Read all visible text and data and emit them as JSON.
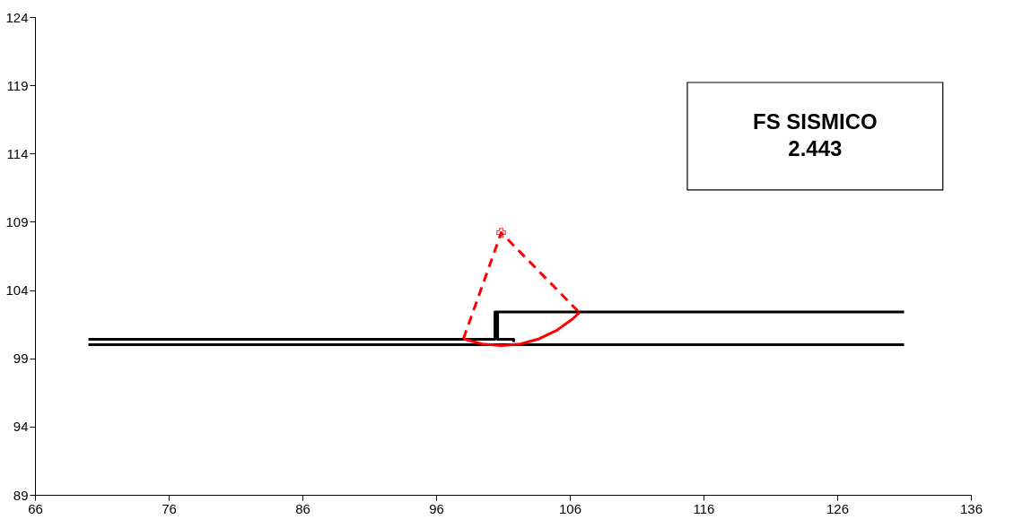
{
  "chart_data": {
    "type": "line",
    "xlim": [
      66,
      136
    ],
    "xticks": [
      66,
      76,
      86,
      96,
      106,
      116,
      126,
      136
    ],
    "ylim": [
      89,
      124
    ],
    "yticks": [
      89,
      94,
      99,
      104,
      109,
      114,
      119,
      124
    ],
    "grid": false,
    "annotations": [
      "FS  SISMICO\n2.443"
    ],
    "series": [
      {
        "type": "line",
        "color": "#000000",
        "line_style": "solid",
        "marker": "none",
        "x": [
          70,
          100.4,
          100.4,
          131
        ],
        "values": [
          100.4,
          100.4,
          102.4,
          102.4
        ]
      },
      {
        "type": "line",
        "color": "#000000",
        "line_style": "solid",
        "marker": "none",
        "x": [
          100.6,
          100.6,
          101.8,
          101.8
        ],
        "values": [
          102.4,
          100.4,
          100.4,
          100.2
        ]
      },
      {
        "type": "line",
        "color": "#000000",
        "line_style": "solid",
        "marker": "none",
        "x": [
          70,
          131
        ],
        "values": [
          100.0,
          100.0
        ]
      },
      {
        "type": "line",
        "color": "#ff0000",
        "line_style": "solid",
        "marker": "none",
        "x": [
          98.04,
          99.43,
          100.87,
          102.31,
          103.7,
          105.01,
          106.19,
          106.72
        ],
        "values": [
          100.43,
          100.05,
          99.93,
          100.05,
          100.43,
          101.04,
          101.87,
          102.35
        ]
      },
      {
        "type": "line",
        "color": "#ff0000",
        "line_style": "dashed",
        "marker": "none",
        "x": [
          98.04,
          100.87,
          106.72
        ],
        "values": [
          100.43,
          108.2,
          102.35
        ]
      },
      {
        "type": "scatter",
        "color": "#ff0000",
        "marker": "cross",
        "x": [
          100.87
        ],
        "values": [
          108.2
        ]
      }
    ]
  }
}
